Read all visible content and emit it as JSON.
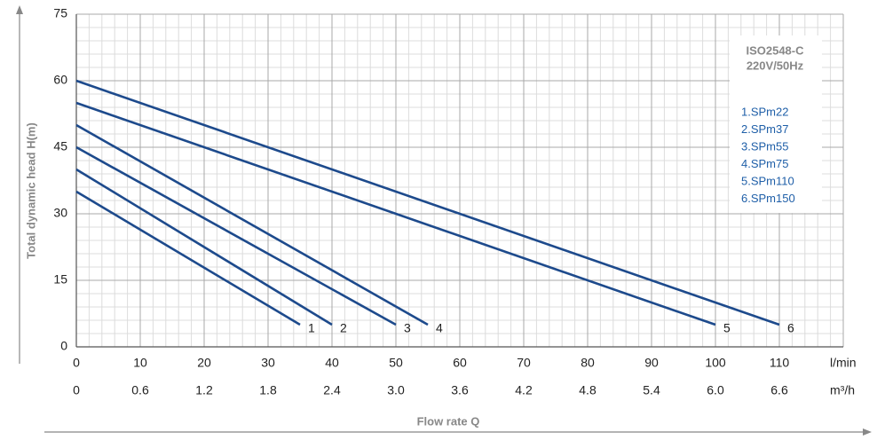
{
  "chart_data": {
    "type": "line",
    "y_label": "Total dynamic head H(m)",
    "x_label": "Flow rate Q",
    "x_unit": "l/min",
    "x2_unit": "m³/h",
    "annotation": [
      "ISO2548-C",
      "220V/50Hz"
    ],
    "xlim": [
      0,
      120
    ],
    "xticks": [
      0,
      10,
      20,
      30,
      40,
      50,
      60,
      70,
      80,
      90,
      100,
      110
    ],
    "x2lim": [
      0,
      7.2
    ],
    "x2ticks": [
      0,
      0.6,
      1.2,
      1.8,
      2.4,
      {
        "value": 3,
        "label": "3.0"
      },
      3.6,
      4.2,
      4.8,
      5.4,
      {
        "value": 6,
        "label": "6.0"
      },
      6.6
    ],
    "ylim": [
      0,
      75
    ],
    "yticks": [
      0,
      15,
      30,
      45,
      60,
      75
    ],
    "grid": true,
    "series": [
      {
        "name": "1.SPm22",
        "label": "1",
        "color": "#1d4a8c",
        "x": [
          0,
          35
        ],
        "values": [
          35,
          5
        ]
      },
      {
        "name": "2.SPm37",
        "label": "2",
        "color": "#1d4a8c",
        "x": [
          0,
          40
        ],
        "values": [
          40,
          5
        ]
      },
      {
        "name": "3.SPm55",
        "label": "3",
        "color": "#1d4a8c",
        "x": [
          0,
          50
        ],
        "values": [
          45,
          5
        ]
      },
      {
        "name": "4.SPm75",
        "label": "4",
        "color": "#1d4a8c",
        "x": [
          0,
          55
        ],
        "values": [
          50,
          5
        ]
      },
      {
        "name": "5.SPm110",
        "label": "5",
        "color": "#1d4a8c",
        "x": [
          0,
          100
        ],
        "values": [
          55,
          5
        ]
      },
      {
        "name": "6.SPm150",
        "label": "6",
        "color": "#1d4a8c",
        "x": [
          0,
          110
        ],
        "values": [
          60,
          5
        ]
      }
    ]
  }
}
